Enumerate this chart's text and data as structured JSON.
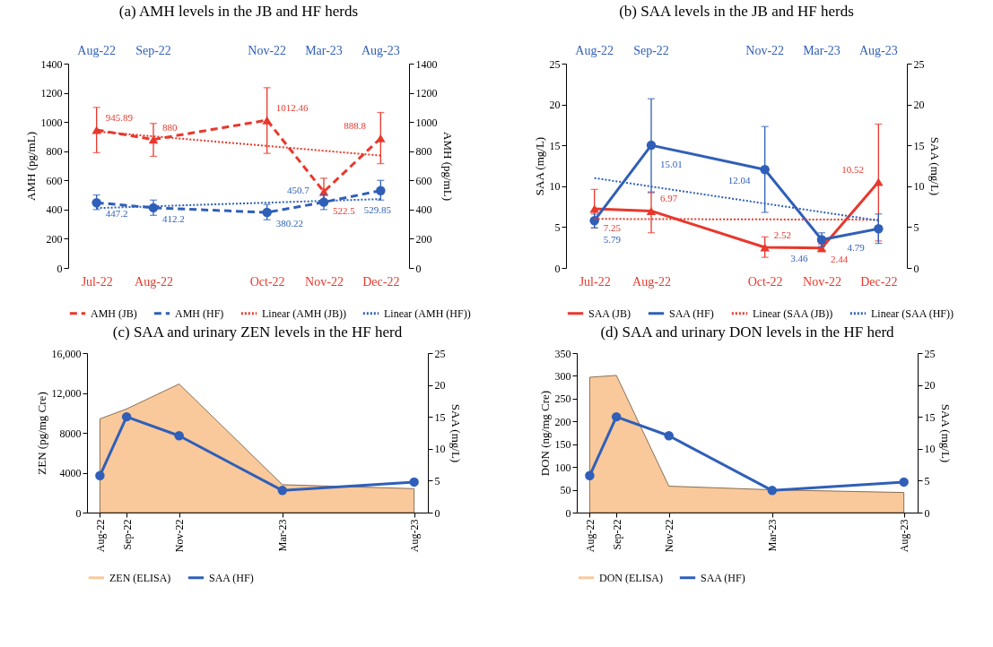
{
  "chart_data": [
    {
      "type": "line",
      "title": "(a) AMH levels in the JB and HF herds",
      "ylabel": "AMH (pg/mL)",
      "y2label": "AMH (pg/mL)",
      "categories": [
        "Jul-22",
        "Aug-22",
        null,
        "Oct-22",
        "Nov-22",
        "Dec-22"
      ],
      "annotations": [
        "Aug-22",
        "Sep-22",
        "Nov-22",
        "Mar-23",
        "Aug-23"
      ],
      "ylim": [
        0,
        1400
      ],
      "yticks": [
        0,
        200,
        400,
        600,
        800,
        1000,
        1200,
        1400
      ],
      "y2lim": [
        0,
        1400
      ],
      "y2ticks": [
        0,
        200,
        400,
        600,
        800,
        1000,
        1200,
        1400
      ],
      "legend": "bottom",
      "series": [
        {
          "name": "AMH (JB)",
          "color": "#e8382c",
          "marker": "triangle",
          "line_style": "dashed",
          "x": [
            "Jul-22",
            "Aug-22",
            "Oct-22",
            "Nov-22",
            "Dec-22"
          ],
          "values": [
            945.89,
            880,
            1012.46,
            522.5,
            888.8
          ],
          "errors": [
            [
              790,
              1100
            ],
            [
              765,
              990
            ],
            [
              785,
              1235
            ],
            [
              440,
              615
            ],
            [
              715,
              1065
            ]
          ],
          "value_labels": [
            "945.89",
            "880",
            "1012.46",
            "522.5",
            "888.8"
          ]
        },
        {
          "name": "AMH (HF)",
          "color": "#2f5fb8",
          "marker": "circle",
          "line_style": "dashed",
          "x": [
            "Jul-22",
            "Aug-22",
            "Oct-22",
            "Nov-22",
            "Dec-22"
          ],
          "values": [
            447.2,
            412.2,
            380.22,
            450.7,
            529.85
          ],
          "errors": [
            [
              400,
              500
            ],
            [
              360,
              465
            ],
            [
              330,
              435
            ],
            [
              400,
              500
            ],
            [
              465,
              600
            ]
          ],
          "value_labels": [
            "447.2",
            "412.2",
            "380.22",
            "450.7",
            "529.85"
          ]
        },
        {
          "name": "Linear (AMH (JB))",
          "type": "line",
          "color": "#e8382c",
          "line_style": "dotted",
          "x": [
            "Jul-22",
            "Dec-22"
          ],
          "values": [
            935,
            770
          ]
        },
        {
          "name": "Linear (AMH (HF))",
          "type": "line",
          "color": "#2f5fb8",
          "line_style": "dotted",
          "x": [
            "Jul-22",
            "Dec-22"
          ],
          "values": [
            410,
            472
          ]
        }
      ]
    },
    {
      "type": "line",
      "title": "(b) SAA levels in the JB and HF herds",
      "ylabel": "SAA (mg/L)",
      "y2label": "SAA (mg/L)",
      "categories": [
        "Jul-22",
        "Aug-22",
        null,
        "Oct-22",
        "Nov-22",
        "Dec-22"
      ],
      "annotations": [
        "Aug-22",
        "Sep-22",
        "Nov-22",
        "Mar-23",
        "Aug-23"
      ],
      "ylim": [
        0,
        25
      ],
      "yticks": [
        0,
        5,
        10,
        15,
        20,
        25
      ],
      "y2lim": [
        0,
        25
      ],
      "y2ticks": [
        0,
        5,
        10,
        15,
        20,
        25
      ],
      "legend": "bottom",
      "series": [
        {
          "name": "SAA (JB)",
          "color": "#e8382c",
          "marker": "triangle",
          "line_style": "solid",
          "x": [
            "Jul-22",
            "Aug-22",
            "Oct-22",
            "Nov-22",
            "Dec-22"
          ],
          "values": [
            7.25,
            6.97,
            2.52,
            2.44,
            10.52
          ],
          "errors": [
            [
              4.9,
              9.6
            ],
            [
              4.3,
              9.2
            ],
            [
              1.3,
              3.8
            ],
            [
              2.0,
              2.9
            ],
            [
              3.3,
              17.6
            ]
          ],
          "value_labels": [
            "7.25",
            "6.97",
            "2.52",
            "2.44",
            "10.52"
          ]
        },
        {
          "name": "SAA (HF)",
          "color": "#2f5fb8",
          "marker": "circle",
          "line_style": "solid",
          "x": [
            "Jul-22",
            "Aug-22",
            "Oct-22",
            "Nov-22",
            "Dec-22"
          ],
          "values": [
            5.79,
            15.01,
            12.04,
            3.46,
            4.79
          ],
          "errors": [
            [
              4.9,
              6.6
            ],
            [
              9.3,
              20.7
            ],
            [
              6.8,
              17.3
            ],
            [
              2.6,
              4.3
            ],
            [
              3.0,
              6.6
            ]
          ],
          "value_labels": [
            "5.79",
            "15.01",
            "12.04",
            "3.46",
            "4.79"
          ]
        },
        {
          "name": "Linear (SAA (JB))",
          "type": "line",
          "color": "#e8382c",
          "line_style": "dotted",
          "x": [
            "Jul-22",
            "Dec-22"
          ],
          "values": [
            6.0,
            5.9
          ]
        },
        {
          "name": "Linear (SAA (HF))",
          "type": "line",
          "color": "#2f5fb8",
          "line_style": "dotted",
          "x": [
            "Jul-22",
            "Dec-22"
          ],
          "values": [
            11.0,
            5.8
          ]
        }
      ]
    },
    {
      "type": "area",
      "title": "(c) SAA and urinary ZEN levels in the HF herd",
      "ylabel": "ZEN (pg/mg Cre)",
      "y2label": "SAA (mg/L)",
      "x": [
        "2022-08",
        "2022-09",
        "2022-11",
        "2023-03",
        "2023-08"
      ],
      "xlim": [
        "2022-07-17",
        "2023-08-17"
      ],
      "xticks": [
        {
          "value": "2022-08",
          "label": "Aug-22"
        },
        {
          "value": "2022-09",
          "label": "Sep-22"
        },
        {
          "value": "2022-11",
          "label": "Nov-22"
        },
        {
          "value": "2023-03",
          "label": "Mar-23"
        },
        {
          "value": "2023-08",
          "label": "Aug-23"
        }
      ],
      "ylim": [
        0,
        16000
      ],
      "yticks": [
        0,
        4000,
        8000,
        {
          "value": 12000,
          "label": "12,000"
        },
        {
          "value": 16000,
          "label": "16,000"
        }
      ],
      "y2lim": [
        0,
        25
      ],
      "y2ticks": [
        0,
        5,
        10,
        15,
        20,
        25
      ],
      "legend": "bottom",
      "series": [
        {
          "name": "ZEN (ELISA)",
          "color": "#f9c99b",
          "values": [
            9400,
            10400,
            12900,
            2800,
            2400
          ]
        },
        {
          "name": "SAA (HF)",
          "type": "line",
          "axis": "y2",
          "color": "#2f5fb8",
          "marker": "circle",
          "line_style": "solid",
          "values": [
            5.79,
            15.01,
            12.04,
            3.46,
            4.79
          ]
        }
      ]
    },
    {
      "type": "area",
      "title": "(d) SAA and urinary DON levels in the HF herd",
      "ylabel": "DON (ng/mg Cre)",
      "y2label": "SAA (mg/L)",
      "x": [
        "2022-08",
        "2022-09",
        "2022-11",
        "2023-03",
        "2023-08"
      ],
      "xlim": [
        "2022-07-17",
        "2023-08-17"
      ],
      "xticks": [
        {
          "value": "2022-08",
          "label": "Aug-22"
        },
        {
          "value": "2022-09",
          "label": "Sep-22"
        },
        {
          "value": "2022-11",
          "label": "Nov-22"
        },
        {
          "value": "2023-03",
          "label": "Mar-23"
        },
        {
          "value": "2023-08",
          "label": "Aug-23"
        }
      ],
      "ylim": [
        0,
        350
      ],
      "yticks": [
        0,
        50,
        100,
        150,
        200,
        250,
        300,
        350
      ],
      "y2lim": [
        0,
        25
      ],
      "y2ticks": [
        0,
        5,
        10,
        15,
        20,
        25
      ],
      "legend": "bottom",
      "series": [
        {
          "name": "DON (ELISA)",
          "color": "#f9c99b",
          "values": [
            297,
            301,
            58,
            50,
            44
          ]
        },
        {
          "name": "SAA (HF)",
          "type": "line",
          "axis": "y2",
          "color": "#2f5fb8",
          "marker": "circle",
          "line_style": "solid",
          "values": [
            5.79,
            15.01,
            12.04,
            3.46,
            4.79
          ]
        }
      ]
    }
  ]
}
